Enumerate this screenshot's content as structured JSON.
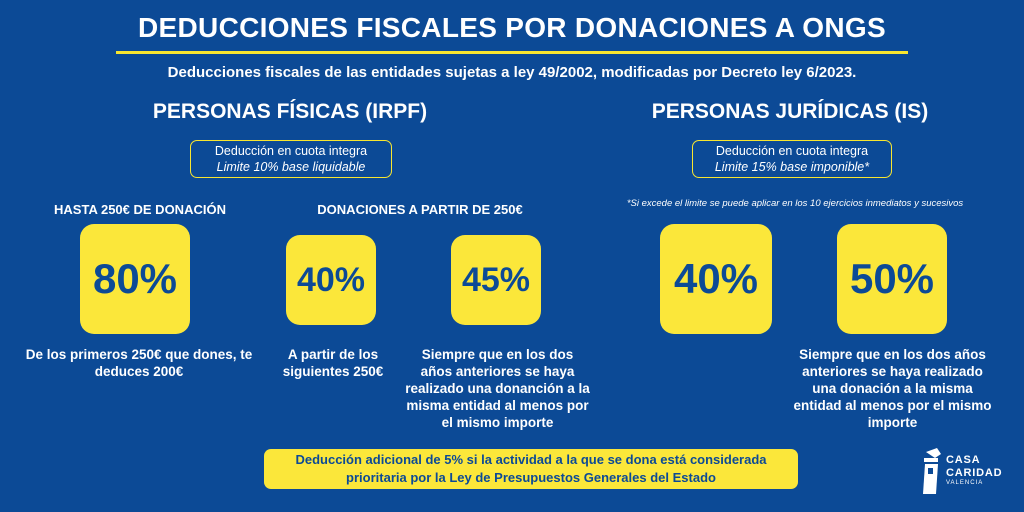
{
  "title": "DEDUCCIONES FISCALES POR DONACIONES A ONGS",
  "subtitle": "Deducciones fiscales de las entidades sujetas a ley 49/2002, modificadas por Decreto ley 6/2023.",
  "personas_fisicas": {
    "heading": "PERSONAS FÍSICAS (IRPF)",
    "box_line1": "Deducción en cuota integra",
    "box_line2": "Limite 10% base liquidable",
    "label_hasta": "HASTA 250€ DE DONACIÓN",
    "label_donaciones": "DONACIONES A PARTIR DE 250€",
    "pct_80": "80%",
    "pct_40": "40%",
    "pct_45": "45%",
    "desc_80": "De los primeros 250€ que dones, te deduces 200€",
    "desc_40": "A partir de los siguientes 250€",
    "desc_45": "Siempre que en los dos años anteriores se haya realizado una donanción a la misma entidad al menos por el mismo importe"
  },
  "personas_juridicas": {
    "heading": "PERSONAS JURÍDICAS (IS)",
    "box_line1": "Deducción en cuota integra",
    "box_line2": "Limite 15% base imponible*",
    "footnote": "*Si excede el limite se puede aplicar en los 10 ejercicios inmediatos y sucesivos",
    "pct_40": "40%",
    "pct_50": "50%",
    "desc_50": "Siempre que en los dos años anteriores se haya realizado una donación a la misma entidad al menos por el mismo importe"
  },
  "bottom_note": "Deducción adicional de 5% si la actividad a la que se dona está considerada prioritaria por la Ley de Presupuestos Generales del Estado",
  "logo": {
    "line1": "CASA",
    "line2": "CARIDAD",
    "line3": "VALENCIA",
    "icon": "casa-caridad-logo-icon"
  },
  "colors": {
    "background": "#0c4a96",
    "accent": "#fbe73a",
    "text": "#ffffff"
  }
}
